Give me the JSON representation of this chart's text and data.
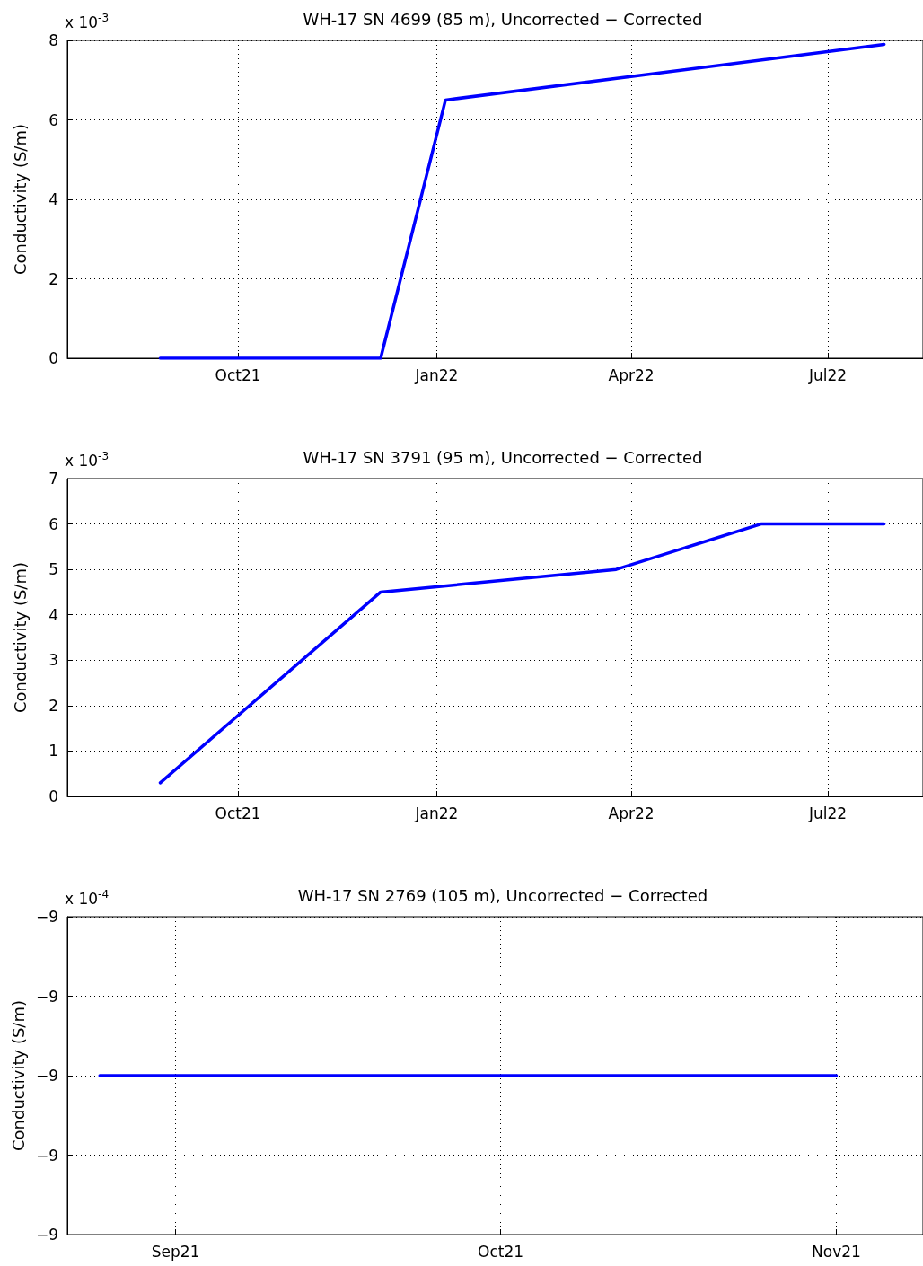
{
  "chart_data": [
    {
      "type": "line",
      "title": "WH-17 SN 4699 (85 m), Uncorrected − Corrected",
      "ylabel": "Conductivity (S/m)",
      "annotations": [
        "x 10$^{-3}$"
      ],
      "x": [
        "2021-08-26",
        "2021-12-06",
        "2022-01-05",
        "2022-07-27"
      ],
      "values": [
        0,
        0,
        6.5,
        7.9
      ],
      "color": "#0000ff",
      "xlim": [
        "2021-07-14",
        "2022-08-14"
      ],
      "xticks": [
        {
          "value": "2021-10-01",
          "label": "Oct21"
        },
        {
          "value": "2022-01-01",
          "label": "Jan22"
        },
        {
          "value": "2022-04-01",
          "label": "Apr22"
        },
        {
          "value": "2022-07-01",
          "label": "Jul22"
        }
      ],
      "ylim": [
        0,
        8
      ],
      "yticks": [
        0,
        2,
        4,
        6,
        8
      ],
      "grid": true,
      "marker": "none",
      "line_style": "solid"
    },
    {
      "type": "line",
      "title": "WH-17 SN 3791 (95 m), Uncorrected − Corrected",
      "ylabel": "Conductivity (S/m)",
      "annotations": [
        "x 10$^{-3}$"
      ],
      "x": [
        "2021-08-26",
        "2021-12-06",
        "2022-03-25",
        "2022-05-31",
        "2022-07-27"
      ],
      "values": [
        0.3,
        4.5,
        5.0,
        6.0,
        6.0
      ],
      "color": "#0000ff",
      "xlim": [
        "2021-07-14",
        "2022-08-14"
      ],
      "xticks": [
        {
          "value": "2021-10-01",
          "label": "Oct21"
        },
        {
          "value": "2022-01-01",
          "label": "Jan22"
        },
        {
          "value": "2022-04-01",
          "label": "Apr22"
        },
        {
          "value": "2022-07-01",
          "label": "Jul22"
        }
      ],
      "ylim": [
        0,
        7
      ],
      "yticks": [
        0,
        1,
        2,
        3,
        4,
        5,
        6,
        7
      ],
      "grid": true,
      "marker": "none",
      "line_style": "solid"
    },
    {
      "type": "line",
      "title": "WH-17 SN 2769 (105 m), Uncorrected − Corrected",
      "ylabel": "Conductivity (S/m)",
      "annotations": [
        "x 10$^{-4}$"
      ],
      "x": [
        "2021-08-25",
        "2021-11-01"
      ],
      "values": [
        -9,
        -9
      ],
      "color": "#0000ff",
      "xlim": [
        "2021-08-22",
        "2021-11-09"
      ],
      "xticks": [
        {
          "value": "2021-09-01",
          "label": "Sep21"
        },
        {
          "value": "2021-10-01",
          "label": "Oct21"
        },
        {
          "value": "2021-11-01",
          "label": "Nov21"
        }
      ],
      "ylim": [
        -9.0002,
        -8.9998
      ],
      "yticks": [
        {
          "value": -9.0002,
          "label": "−9"
        },
        {
          "value": -9.0001,
          "label": "−9"
        },
        {
          "value": -9,
          "label": "−9"
        },
        {
          "value": -8.9999,
          "label": "−9"
        },
        {
          "value": -8.9998,
          "label": "−9"
        }
      ],
      "grid": true,
      "marker": "none",
      "line_style": "solid"
    }
  ]
}
